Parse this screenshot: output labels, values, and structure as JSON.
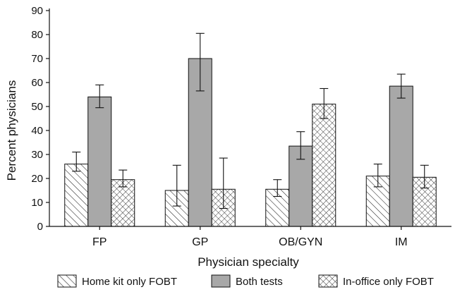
{
  "chart_data": {
    "type": "bar",
    "xlabel": "Physician specialty",
    "ylabel": "Percent physicians",
    "ylim": [
      0,
      90
    ],
    "yticks": [
      0,
      10,
      20,
      30,
      40,
      50,
      60,
      70,
      80,
      90
    ],
    "grid": false,
    "legend_position": "bottom",
    "categories": [
      "FP",
      "GP",
      "OB/GYN",
      "IM"
    ],
    "series": [
      {
        "name": "Home kit only FOBT",
        "pattern": "diagonal-hatch",
        "fill": "#ffffff",
        "values": [
          26,
          15,
          15.5,
          21
        ],
        "err_low": [
          23,
          8.5,
          12.5,
          16.5
        ],
        "err_high": [
          31,
          25.5,
          19.5,
          26
        ]
      },
      {
        "name": "Both tests",
        "pattern": "solid",
        "fill": "#a8a8a8",
        "values": [
          54,
          70,
          33.5,
          58.5
        ],
        "err_low": [
          49.5,
          56.5,
          28,
          53.5
        ],
        "err_high": [
          59,
          80.5,
          39.5,
          63.5
        ]
      },
      {
        "name": "In-office only FOBT",
        "pattern": "cross-hatch",
        "fill": "#ffffff",
        "values": [
          19.5,
          15.5,
          51,
          20.5
        ],
        "err_low": [
          16.5,
          7.5,
          45,
          16
        ],
        "err_high": [
          23.5,
          28.5,
          57.5,
          25.5
        ]
      }
    ]
  }
}
